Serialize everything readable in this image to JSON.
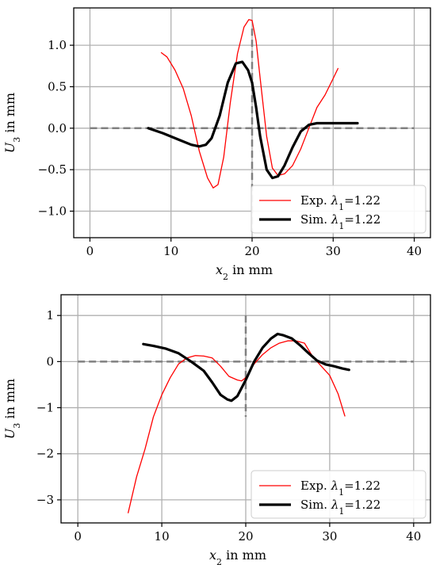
{
  "chart_data": [
    {
      "type": "line",
      "xlabel": "x₂ in mm",
      "ylabel": "U₃ in mm",
      "xlim": [
        -2,
        42
      ],
      "ylim": [
        -1.32,
        1.45
      ],
      "xticks": [
        0,
        10,
        20,
        30,
        40
      ],
      "yticks": [
        -1.0,
        -0.5,
        0.0,
        0.5,
        1.0
      ],
      "ytick_labels": [
        "−1.0",
        "−0.5",
        "0.0",
        "0.5",
        "1.0"
      ],
      "grid": true,
      "legend_position": "lower-right",
      "reference_lines": {
        "horizontal_y": 0,
        "horizontal_x_range": [
          0,
          40
        ],
        "vertical_x": 20,
        "vertical_y_range": [
          -1.25,
          1.2
        ]
      },
      "series": [
        {
          "name": "Exp.",
          "label_math": "λ₁=1.22",
          "color": "#ff0000",
          "style": "thin",
          "x": [
            8.8,
            9.5,
            10.5,
            11.5,
            12.5,
            13.5,
            14.5,
            15.2,
            15.8,
            16.5,
            17.3,
            18.2,
            19.0,
            19.6,
            20.0,
            20.5,
            21.0,
            21.8,
            22.5,
            23.2,
            24.0,
            25.0,
            26.0,
            27.0,
            28.0,
            29.0,
            30.0,
            30.6
          ],
          "y": [
            0.91,
            0.86,
            0.7,
            0.48,
            0.15,
            -0.28,
            -0.6,
            -0.72,
            -0.68,
            -0.35,
            0.3,
            0.9,
            1.22,
            1.31,
            1.3,
            1.05,
            0.6,
            -0.1,
            -0.48,
            -0.57,
            -0.55,
            -0.45,
            -0.25,
            0.0,
            0.25,
            0.4,
            0.6,
            0.72
          ]
        },
        {
          "name": "Sim.",
          "label_math": "λ₁=1.22",
          "color": "#000000",
          "style": "thick",
          "x": [
            7.2,
            9.0,
            11.0,
            12.5,
            13.5,
            14.3,
            15.0,
            16.0,
            17.0,
            18.0,
            18.8,
            19.5,
            20.0,
            20.5,
            21.0,
            21.8,
            22.5,
            23.2,
            24.0,
            25.0,
            26.0,
            27.0,
            28.0,
            29.0,
            30.0,
            31.0,
            33.0
          ],
          "y": [
            0.0,
            -0.06,
            -0.14,
            -0.2,
            -0.22,
            -0.2,
            -0.12,
            0.15,
            0.55,
            0.78,
            0.8,
            0.7,
            0.55,
            0.25,
            -0.1,
            -0.5,
            -0.6,
            -0.58,
            -0.45,
            -0.23,
            -0.04,
            0.04,
            0.06,
            0.06,
            0.06,
            0.06,
            0.06
          ]
        }
      ]
    },
    {
      "type": "line",
      "xlabel": "x₂ in mm",
      "ylabel": "U₃ in mm",
      "xlim": [
        -2,
        42
      ],
      "ylim": [
        -3.5,
        1.45
      ],
      "xticks": [
        0,
        10,
        20,
        30,
        40
      ],
      "yticks": [
        -3,
        -2,
        -1,
        0,
        1
      ],
      "ytick_labels": [
        "−3",
        "−2",
        "−1",
        "0",
        "1"
      ],
      "grid": true,
      "legend_position": "lower-right",
      "reference_lines": {
        "horizontal_y": 0,
        "horizontal_x_range": [
          0,
          40
        ],
        "vertical_x": 20,
        "vertical_y_range": [
          -1.2,
          1.0
        ]
      },
      "series": [
        {
          "name": "Exp.",
          "label_math": "λ₁=1.22",
          "color": "#ff0000",
          "style": "thin",
          "x": [
            6.0,
            7.0,
            8.0,
            9.0,
            10.0,
            11.0,
            12.0,
            13.0,
            14.0,
            15.0,
            16.0,
            17.0,
            18.0,
            19.0,
            19.5,
            20.0,
            21.0,
            22.0,
            23.0,
            24.0,
            25.0,
            26.0,
            27.0,
            28.0,
            29.0,
            30.0,
            31.0,
            31.8
          ],
          "y": [
            -3.28,
            -2.5,
            -1.9,
            -1.2,
            -0.72,
            -0.35,
            -0.05,
            0.08,
            0.13,
            0.12,
            0.08,
            -0.1,
            -0.32,
            -0.4,
            -0.42,
            -0.35,
            -0.05,
            0.15,
            0.3,
            0.4,
            0.45,
            0.45,
            0.4,
            0.1,
            -0.1,
            -0.3,
            -0.7,
            -1.18
          ]
        },
        {
          "name": "Sim.",
          "label_math": "λ₁=1.22",
          "color": "#000000",
          "style": "thick",
          "x": [
            7.8,
            9.0,
            10.5,
            12.0,
            13.5,
            15.0,
            16.0,
            17.0,
            17.8,
            18.3,
            19.0,
            20.0,
            21.0,
            22.0,
            23.0,
            23.8,
            24.5,
            25.5,
            26.5,
            27.5,
            28.5,
            29.5,
            30.5,
            31.5,
            32.3
          ],
          "y": [
            0.38,
            0.34,
            0.28,
            0.18,
            0.0,
            -0.2,
            -0.45,
            -0.72,
            -0.82,
            -0.85,
            -0.75,
            -0.4,
            0.0,
            0.3,
            0.5,
            0.6,
            0.57,
            0.5,
            0.35,
            0.18,
            0.02,
            -0.06,
            -0.1,
            -0.15,
            -0.18
          ]
        }
      ]
    }
  ]
}
